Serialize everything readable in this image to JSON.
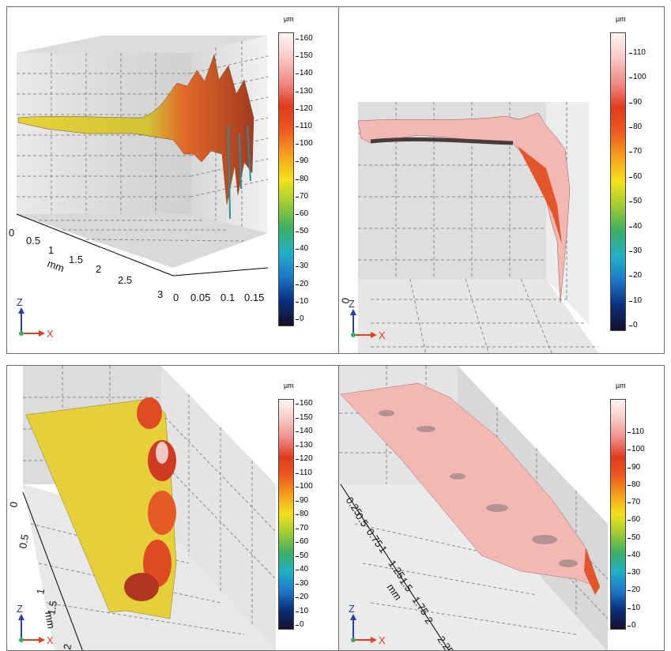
{
  "colors": {
    "gradient": [
      "#15102a",
      "#0a2f7a",
      "#1d78c6",
      "#22b0c6",
      "#3cae63",
      "#9fcb33",
      "#f2e21c",
      "#f6a11d",
      "#ef5a20",
      "#df3b1d",
      "#ef8d87",
      "#f9c9c6",
      "#fff6f5"
    ],
    "yellow_surface": "#e5d13a",
    "pink_surface": "#f3b7b4"
  },
  "panels": [
    {
      "id": "top-left",
      "unit": "µm",
      "ticks": [
        "160",
        "150",
        "140",
        "130",
        "120",
        "110",
        "100",
        "90",
        "80",
        "70",
        "60",
        "50",
        "40",
        "30",
        "20",
        "10",
        "0"
      ],
      "axis1": [
        "0",
        "0.5",
        "1",
        "1.5",
        "2",
        "2.5",
        "3"
      ],
      "axis1_label": "mm",
      "axis2": [
        "0",
        "0.05",
        "0.1",
        "0.15"
      ],
      "triad": {
        "z": "Z",
        "x": "X"
      }
    },
    {
      "id": "top-right",
      "unit": "µm",
      "ticks": [
        "110",
        "100",
        "90",
        "80",
        "70",
        "60",
        "50",
        "40",
        "30",
        "20",
        "10",
        "0"
      ],
      "axis1": [
        "0"
      ],
      "triad": {
        "z": "Z",
        "x": "X"
      }
    },
    {
      "id": "bottom-left",
      "unit": "µm",
      "ticks": [
        "160",
        "150",
        "140",
        "130",
        "120",
        "110",
        "100",
        "90",
        "80",
        "70",
        "60",
        "50",
        "40",
        "30",
        "20",
        "10",
        "0"
      ],
      "axis1": [
        "0",
        "0.5",
        "1",
        "1.5",
        "2"
      ],
      "axis1_label": "mm",
      "triad": {
        "z": "Z",
        "x": "X"
      }
    },
    {
      "id": "bottom-right",
      "unit": "µm",
      "ticks": [
        "110",
        "100",
        "90",
        "80",
        "70",
        "60",
        "50",
        "40",
        "30",
        "20",
        "10",
        "0"
      ],
      "axis1": [
        "0.25",
        "0.5",
        "0.75",
        "1",
        "1.25",
        "1.5",
        "1.75",
        "2",
        "2.25"
      ],
      "axis1_label": "mm",
      "triad": {
        "z": "Z",
        "x": "X"
      }
    }
  ]
}
